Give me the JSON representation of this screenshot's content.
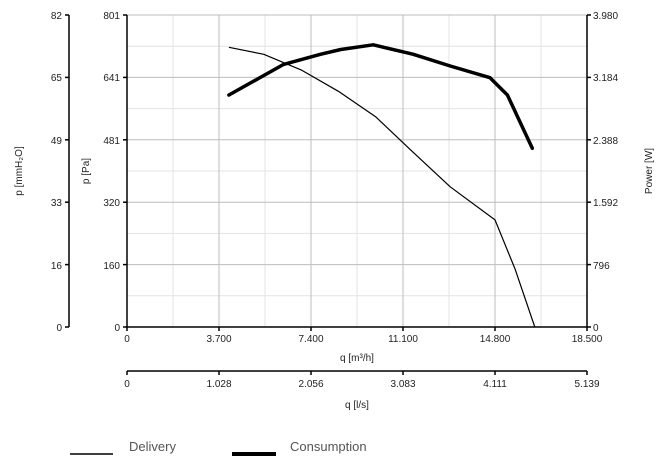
{
  "chart_data": {
    "type": "line",
    "x_axis": {
      "label": "q [m³/h]",
      "ticks": [
        "0",
        "3.700",
        "7.400",
        "11.100",
        "14.800",
        "18.500"
      ],
      "range": [
        0,
        18500
      ]
    },
    "x_axis_secondary": {
      "label": "q [l/s]",
      "ticks": [
        "0",
        "1.028",
        "2.056",
        "3.083",
        "4.111",
        "5.139"
      ],
      "range": [
        0,
        5139
      ]
    },
    "y_axis_pressure_pa": {
      "label": "p [Pa]",
      "ticks": [
        "0",
        "160",
        "320",
        "481",
        "641",
        "801"
      ],
      "range": [
        0,
        801
      ]
    },
    "y_axis_pressure_mmh2o": {
      "label": "p [mmH₂O]",
      "ticks": [
        "0",
        "16",
        "33",
        "49",
        "65",
        "82"
      ],
      "range": [
        0,
        82
      ]
    },
    "y_axis_power": {
      "label": "Power [W]",
      "ticks": [
        "0",
        "796",
        "1.592",
        "2.388",
        "3.184",
        "3.980"
      ],
      "range": [
        0,
        3980
      ]
    },
    "grid": true,
    "legend_position": "bottom-left",
    "series": [
      {
        "name": "Delivery",
        "axis": "pressure_pa",
        "color": "#000000",
        "weight": "thin",
        "x": [
          4100,
          5500,
          7000,
          8500,
          10000,
          11400,
          13000,
          14800,
          15600,
          16400
        ],
        "y": [
          718,
          700,
          660,
          605,
          540,
          455,
          360,
          275,
          150,
          0
        ]
      },
      {
        "name": "Consumption",
        "axis": "power",
        "color": "#000000",
        "weight": "thick",
        "x": [
          4100,
          6300,
          7800,
          8600,
          9900,
          11500,
          13000,
          14600,
          15300,
          16300
        ],
        "y": [
          2960,
          3350,
          3480,
          3540,
          3600,
          3480,
          3330,
          3180,
          2960,
          2280
        ]
      }
    ]
  }
}
